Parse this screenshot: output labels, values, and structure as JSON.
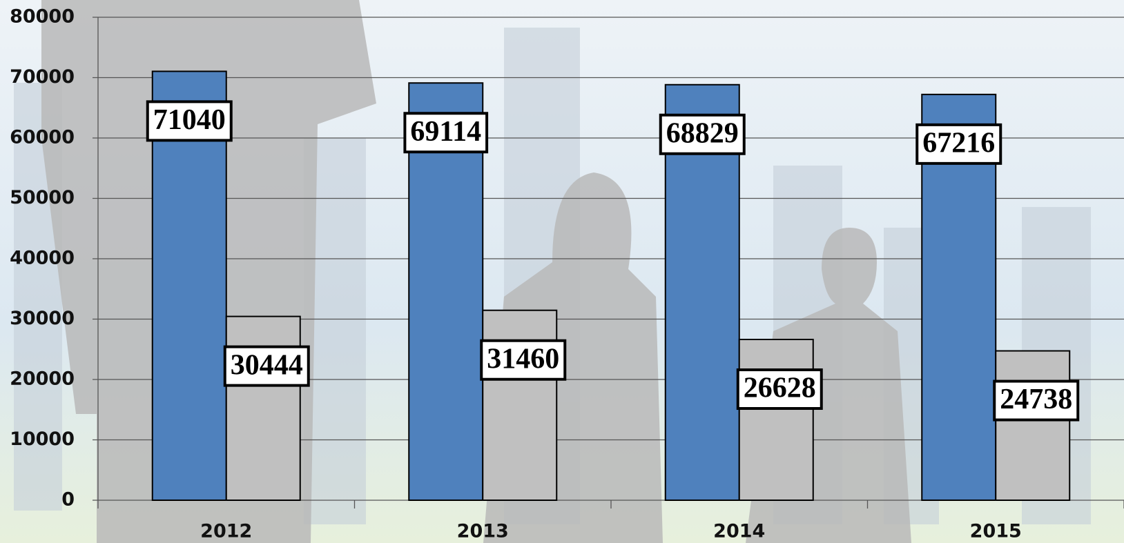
{
  "chart_data": {
    "type": "bar",
    "categories": [
      "2012",
      "2013",
      "2014",
      "2015"
    ],
    "series": [
      {
        "color": "#4f81bd",
        "values": [
          71040,
          69114,
          68829,
          67216
        ]
      },
      {
        "color": "#c0c0c0",
        "values": [
          30444,
          31460,
          26628,
          24738
        ]
      }
    ],
    "ylim": [
      0,
      80000
    ],
    "yticks": [
      0,
      10000,
      20000,
      30000,
      40000,
      50000,
      60000,
      70000,
      80000
    ],
    "grid": true
  }
}
